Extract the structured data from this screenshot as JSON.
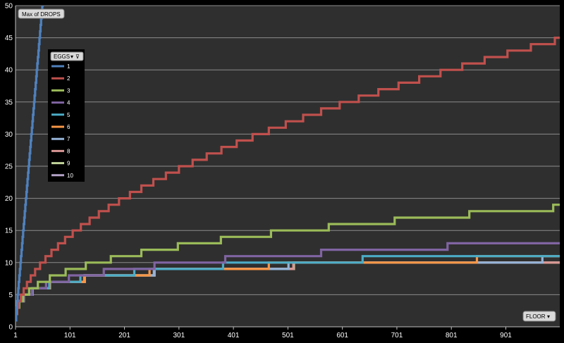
{
  "chart_data": {
    "type": "line",
    "value_button": "Max of DROPS",
    "axis_button": "FLOOR",
    "legend_title": "EGGS",
    "ylim": [
      0,
      50
    ],
    "y_ticks": [
      "0",
      "5",
      "10",
      "15",
      "20",
      "25",
      "30",
      "35",
      "40",
      "45",
      "50"
    ],
    "xlim": [
      1,
      1000
    ],
    "x_ticks": [
      {
        "label": "1",
        "value": 1
      },
      {
        "label": "101",
        "value": 101
      },
      {
        "label": "201",
        "value": 201
      },
      {
        "label": "301",
        "value": 301
      },
      {
        "label": "401",
        "value": 401
      },
      {
        "label": "501",
        "value": 501
      },
      {
        "label": "601",
        "value": 601
      },
      {
        "label": "701",
        "value": 701
      },
      {
        "label": "801",
        "value": 801
      },
      {
        "label": "901",
        "value": 901
      }
    ],
    "grid": true,
    "legend_position": "top-left",
    "series": [
      {
        "name": "1",
        "color": "#4f81bd"
      },
      {
        "name": "2",
        "color": "#c0504d"
      },
      {
        "name": "3",
        "color": "#9bbb59"
      },
      {
        "name": "4",
        "color": "#8064a2"
      },
      {
        "name": "5",
        "color": "#4bacc6"
      },
      {
        "name": "6",
        "color": "#f79646"
      },
      {
        "name": "7",
        "color": "#95b3d7"
      },
      {
        "name": "8",
        "color": "#d99694"
      },
      {
        "name": "9",
        "color": "#c3d69b"
      },
      {
        "name": "10",
        "color": "#b3a2c7"
      }
    ]
  }
}
